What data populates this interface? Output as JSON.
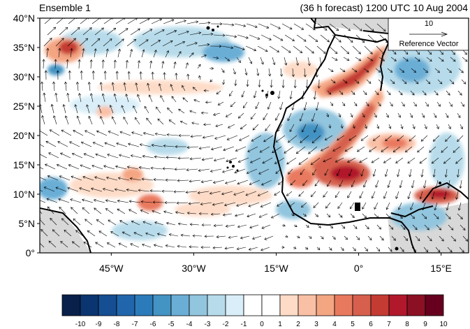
{
  "header": {
    "left_title": "Ensemble 1",
    "right_title": "(36 h forecast) 1200 UTC 10 Aug 2004"
  },
  "reference_vector": {
    "magnitude": "10",
    "label": "Reference Vector"
  },
  "axes": {
    "lat_ticks": [
      {
        "lat": 40,
        "label": "40°N"
      },
      {
        "lat": 35,
        "label": "35°N"
      },
      {
        "lat": 30,
        "label": "30°N"
      },
      {
        "lat": 25,
        "label": "25°N"
      },
      {
        "lat": 20,
        "label": "20°N"
      },
      {
        "lat": 15,
        "label": "15°N"
      },
      {
        "lat": 10,
        "label": "10°N"
      },
      {
        "lat": 5,
        "label": "5°N"
      },
      {
        "lat": 0,
        "label": "0°"
      }
    ],
    "lon_ticks": [
      {
        "lon": -45,
        "label": "45°W"
      },
      {
        "lon": -30,
        "label": "30°W"
      },
      {
        "lon": -15,
        "label": "15°W"
      },
      {
        "lon": 0,
        "label": "0°"
      },
      {
        "lon": 15,
        "label": "15°E"
      }
    ],
    "lon_range": [
      -58,
      20
    ],
    "lat_range": [
      0,
      40
    ]
  },
  "colorbar": {
    "labels": [
      "-10",
      "-9",
      "-8",
      "-7",
      "-6",
      "-5",
      "-4",
      "-3",
      "-2",
      "-1",
      "0",
      "1",
      "2",
      "3",
      "4",
      "5",
      "6",
      "7",
      "8",
      "9",
      "10"
    ],
    "colors": [
      "#08204a",
      "#0b3570",
      "#154e93",
      "#2166ac",
      "#2b7bba",
      "#4393c3",
      "#6aaed6",
      "#92c5de",
      "#b7dbea",
      "#d9eef8",
      "#ffffff",
      "#ffffff",
      "#fddbc7",
      "#f9c0a6",
      "#f4a582",
      "#e9795e",
      "#d6604d",
      "#c43b33",
      "#b2182b",
      "#8c1023",
      "#67001f"
    ]
  },
  "colors": {
    "land_mask": "#d8d8d8",
    "coast": "#000000",
    "arrow": "#000000"
  }
}
